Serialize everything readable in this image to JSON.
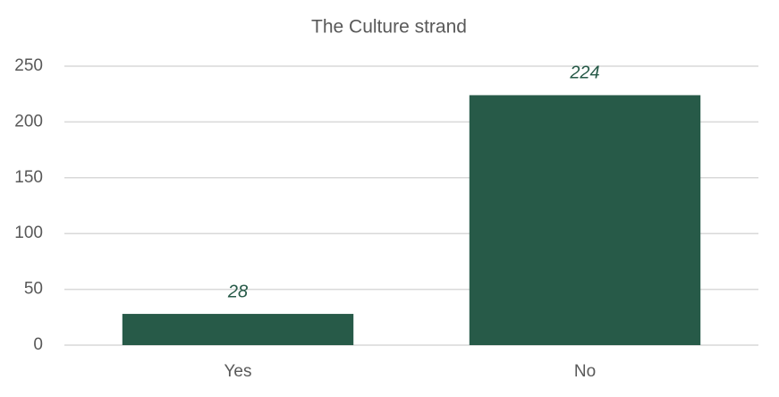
{
  "chart_data": {
    "type": "bar",
    "title": "The Culture strand",
    "categories": [
      "Yes",
      "No"
    ],
    "values": [
      28,
      224
    ],
    "color": "#275a48",
    "ylim": [
      0,
      250
    ],
    "yticks": [
      0,
      50,
      100,
      150,
      200,
      250
    ],
    "grid": true,
    "data_labels": true
  }
}
